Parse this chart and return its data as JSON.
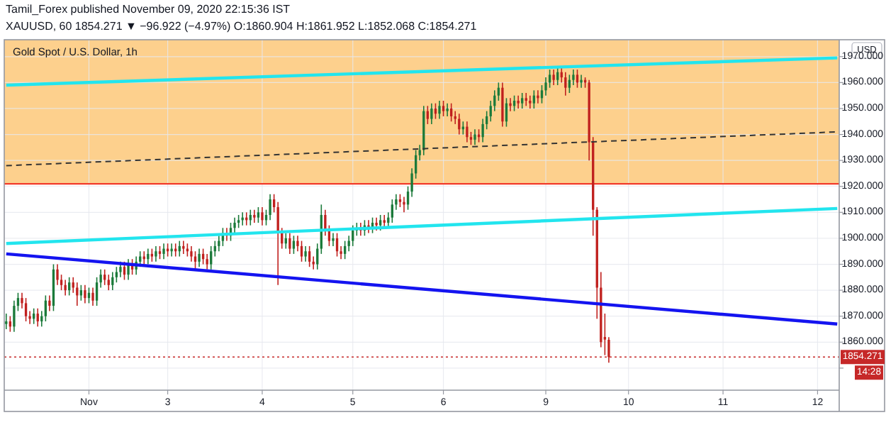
{
  "chart_data": {
    "type": "candlestick",
    "title": "Gold Spot / U.S. Dollar, 1h",
    "ylabel": "USD",
    "annotations": [
      "Tamil_Forex published November 09, 2020 22:15:36 IST",
      "XAUUSD, 60  1854.271 ▼ −96.922 (−4.97%) O:1860.904 H:1861.952 L:1852.068 C:1854.271",
      "14:28"
    ],
    "categories": [
      null,
      null,
      null,
      null,
      null,
      null,
      null,
      null,
      null,
      null,
      null,
      null,
      null,
      null,
      null,
      null,
      null,
      null,
      null,
      null,
      null,
      "Nov",
      null,
      null,
      null,
      null,
      null,
      null,
      null,
      null,
      null,
      null,
      null,
      null,
      null,
      null,
      null,
      null,
      null,
      null,
      null,
      "3",
      null,
      null,
      null,
      null,
      null,
      null,
      null,
      null,
      null,
      null,
      null,
      null,
      null,
      null,
      null,
      null,
      null,
      null,
      null,
      null,
      null,
      null,
      null,
      "4",
      null,
      null,
      null,
      null,
      null,
      null,
      null,
      null,
      null,
      null,
      null,
      null,
      null,
      null,
      null,
      null,
      null,
      null,
      null,
      null,
      null,
      null,
      "5",
      null,
      null,
      null,
      null,
      null,
      null,
      null,
      null,
      null,
      null,
      null,
      null,
      null,
      null,
      null,
      null,
      null,
      null,
      null,
      null,
      null,
      null,
      "6",
      null,
      null,
      null,
      null,
      null,
      null,
      null,
      null,
      null,
      null,
      null,
      null,
      null,
      null,
      null,
      null,
      null,
      null,
      null,
      null,
      null,
      null,
      null,
      null,
      null,
      "9",
      null,
      null,
      null,
      null,
      null,
      null,
      null,
      null,
      null,
      null,
      null,
      null,
      null,
      null,
      null,
      null,
      null,
      null,
      null,
      null,
      "10",
      null,
      null,
      null,
      null,
      null,
      null,
      null,
      null,
      null,
      null,
      null,
      null,
      null,
      null,
      null,
      null,
      null,
      null,
      null,
      null,
      null,
      null,
      null,
      "11",
      null,
      null,
      null,
      null,
      null,
      null,
      null,
      null,
      null,
      null,
      null,
      null,
      null,
      null,
      null,
      null,
      null,
      null,
      null,
      null,
      null,
      null,
      null,
      "12",
      null,
      null,
      null,
      null,
      null
    ],
    "ylim": [
      1841.5,
      1976.5
    ],
    "yticks": [
      {
        "value": 1850,
        "label": null
      },
      {
        "value": 1860,
        "label": "1860.000"
      },
      {
        "value": 1870,
        "label": "1870.000"
      },
      {
        "value": 1880,
        "label": "1880.000"
      },
      {
        "value": 1890,
        "label": "1890.000"
      },
      {
        "value": 1900,
        "label": "1900.000"
      },
      {
        "value": 1910,
        "label": "1910.000"
      },
      {
        "value": 1920,
        "label": "1920.000"
      },
      {
        "value": 1930,
        "label": "1930.000"
      },
      {
        "value": 1940,
        "label": "1940.000"
      },
      {
        "value": 1950,
        "label": "1950.000"
      },
      {
        "value": 1960,
        "label": "1960.000"
      },
      {
        "value": 1970,
        "label": "1970.000"
      }
    ],
    "grid": true,
    "bands": [
      {
        "axis": "y",
        "from": 1921,
        "to": 1976.5,
        "color": "#fdd08d"
      }
    ],
    "ref_lines": [
      {
        "axis": "y",
        "value": 1921,
        "color": "#f23c2c",
        "line_style": "solid"
      },
      {
        "axis": "y",
        "value": 1854.271,
        "label": "1854.271",
        "color": "#c62828",
        "line_style": "dotted"
      }
    ],
    "series": [
      {
        "ohlc": [
          [
            1867,
            1871,
            1865,
            1868
          ],
          [
            1868,
            1870,
            1864,
            1866
          ],
          [
            1866,
            1876,
            1864,
            1874
          ],
          [
            1874,
            1879,
            1872,
            1877
          ],
          [
            1877,
            1879,
            1873,
            1875
          ],
          [
            1875,
            1877,
            1868,
            1870
          ],
          [
            1870,
            1872,
            1867,
            1869
          ],
          [
            1869,
            1873,
            1867,
            1871
          ],
          [
            1871,
            1873,
            1866,
            1868
          ],
          [
            1868,
            1872,
            1866,
            1870
          ],
          [
            1870,
            1878,
            1868,
            1876
          ],
          [
            1876,
            1878,
            1872,
            1874
          ],
          [
            1874,
            1890,
            1872,
            1888
          ],
          [
            1888,
            1890,
            1882,
            1884
          ],
          [
            1884,
            1886,
            1880,
            1882
          ],
          [
            1882,
            1884,
            1878,
            1880
          ],
          [
            1880,
            1885,
            1878,
            1883
          ],
          [
            1883,
            1885,
            1879,
            1881
          ],
          [
            1881,
            1883,
            1874,
            1878
          ],
          [
            1878,
            1882,
            1876,
            1880
          ],
          [
            1880,
            1882,
            1875,
            1877
          ],
          [
            1877,
            1881,
            1875,
            1879
          ],
          [
            1879,
            1881,
            1874,
            1876
          ],
          [
            1876,
            1885,
            1874,
            1883
          ],
          [
            1883,
            1888,
            1881,
            1886
          ],
          [
            1886,
            1888,
            1882,
            1884
          ],
          [
            1884,
            1886,
            1880,
            1882
          ],
          [
            1882,
            1887,
            1880,
            1885
          ],
          [
            1885,
            1889,
            1883,
            1887
          ],
          [
            1887,
            1891,
            1885,
            1889
          ],
          [
            1889,
            1891,
            1884,
            1886
          ],
          [
            1886,
            1892,
            1884,
            1890
          ],
          [
            1890,
            1892,
            1886,
            1888
          ],
          [
            1888,
            1893,
            1886,
            1891
          ],
          [
            1891,
            1895,
            1889,
            1893
          ],
          [
            1893,
            1895,
            1890,
            1892
          ],
          [
            1892,
            1896,
            1890,
            1894
          ],
          [
            1894,
            1896,
            1891,
            1893
          ],
          [
            1893,
            1897,
            1891,
            1895
          ],
          [
            1895,
            1897,
            1892,
            1894
          ],
          [
            1894,
            1898,
            1892,
            1896
          ],
          [
            1896,
            1898,
            1893,
            1895
          ],
          [
            1895,
            1898,
            1893,
            1896
          ],
          [
            1896,
            1898,
            1893,
            1895
          ],
          [
            1895,
            1899,
            1893,
            1897
          ],
          [
            1897,
            1899,
            1894,
            1896
          ],
          [
            1896,
            1898,
            1893,
            1895
          ],
          [
            1895,
            1897,
            1891,
            1893
          ],
          [
            1893,
            1895,
            1888,
            1891
          ],
          [
            1891,
            1896,
            1889,
            1894
          ],
          [
            1894,
            1896,
            1890,
            1892
          ],
          [
            1892,
            1894,
            1888,
            1890
          ],
          [
            1890,
            1897,
            1888,
            1895
          ],
          [
            1895,
            1899,
            1893,
            1897
          ],
          [
            1897,
            1901,
            1895,
            1899
          ],
          [
            1899,
            1904,
            1897,
            1902
          ],
          [
            1902,
            1904,
            1899,
            1901
          ],
          [
            1901,
            1906,
            1899,
            1904
          ],
          [
            1904,
            1908,
            1902,
            1906
          ],
          [
            1906,
            1909,
            1904,
            1907
          ],
          [
            1907,
            1910,
            1905,
            1908
          ],
          [
            1908,
            1910,
            1905,
            1907
          ],
          [
            1907,
            1911,
            1905,
            1909
          ],
          [
            1909,
            1911,
            1906,
            1908
          ],
          [
            1908,
            1912,
            1906,
            1910
          ],
          [
            1910,
            1912,
            1905,
            1907
          ],
          [
            1907,
            1911,
            1905,
            1909
          ],
          [
            1909,
            1917,
            1907,
            1915
          ],
          [
            1915,
            1917,
            1910,
            1912
          ],
          [
            1912,
            1914,
            1882,
            1902
          ],
          [
            1902,
            1904,
            1896,
            1898
          ],
          [
            1898,
            1902,
            1896,
            1900
          ],
          [
            1900,
            1902,
            1894,
            1896
          ],
          [
            1896,
            1901,
            1894,
            1899
          ],
          [
            1899,
            1901,
            1895,
            1897
          ],
          [
            1897,
            1899,
            1891,
            1893
          ],
          [
            1893,
            1897,
            1891,
            1895
          ],
          [
            1895,
            1897,
            1889,
            1891
          ],
          [
            1891,
            1893,
            1888,
            1890
          ],
          [
            1890,
            1898,
            1888,
            1896
          ],
          [
            1896,
            1913,
            1894,
            1909
          ],
          [
            1909,
            1911,
            1901,
            1903
          ],
          [
            1903,
            1905,
            1897,
            1899
          ],
          [
            1899,
            1902,
            1897,
            1900
          ],
          [
            1900,
            1902,
            1893,
            1895
          ],
          [
            1895,
            1897,
            1892,
            1894
          ],
          [
            1894,
            1899,
            1892,
            1897
          ],
          [
            1897,
            1901,
            1895,
            1899
          ],
          [
            1899,
            1905,
            1897,
            1903
          ],
          [
            1903,
            1906,
            1901,
            1904
          ],
          [
            1904,
            1906,
            1901,
            1903
          ],
          [
            1903,
            1907,
            1901,
            1905
          ],
          [
            1905,
            1907,
            1902,
            1904
          ],
          [
            1904,
            1908,
            1902,
            1906
          ],
          [
            1906,
            1908,
            1903,
            1905
          ],
          [
            1905,
            1909,
            1903,
            1907
          ],
          [
            1907,
            1909,
            1904,
            1906
          ],
          [
            1906,
            1910,
            1904,
            1908
          ],
          [
            1908,
            1915,
            1906,
            1913
          ],
          [
            1913,
            1917,
            1911,
            1915
          ],
          [
            1915,
            1917,
            1912,
            1914
          ],
          [
            1914,
            1916,
            1910,
            1913
          ],
          [
            1913,
            1920,
            1911,
            1918
          ],
          [
            1918,
            1927,
            1916,
            1925
          ],
          [
            1925,
            1934,
            1923,
            1932
          ],
          [
            1932,
            1936,
            1930,
            1934
          ],
          [
            1934,
            1951,
            1932,
            1949
          ],
          [
            1949,
            1951,
            1944,
            1946
          ],
          [
            1946,
            1952,
            1944,
            1950
          ],
          [
            1950,
            1952,
            1946,
            1948
          ],
          [
            1948,
            1953,
            1946,
            1951
          ],
          [
            1951,
            1953,
            1947,
            1949
          ],
          [
            1949,
            1952,
            1947,
            1950
          ],
          [
            1950,
            1952,
            1945,
            1947
          ],
          [
            1947,
            1949,
            1944,
            1946
          ],
          [
            1946,
            1948,
            1940,
            1942
          ],
          [
            1942,
            1945,
            1940,
            1943
          ],
          [
            1943,
            1945,
            1937,
            1939
          ],
          [
            1939,
            1941,
            1936,
            1938
          ],
          [
            1938,
            1942,
            1936,
            1940
          ],
          [
            1940,
            1942,
            1937,
            1939
          ],
          [
            1939,
            1946,
            1937,
            1944
          ],
          [
            1944,
            1949,
            1942,
            1947
          ],
          [
            1947,
            1953,
            1945,
            1951
          ],
          [
            1951,
            1957,
            1949,
            1955
          ],
          [
            1955,
            1960,
            1953,
            1958
          ],
          [
            1958,
            1960,
            1943,
            1945
          ],
          [
            1945,
            1954,
            1943,
            1952
          ],
          [
            1952,
            1954,
            1949,
            1951
          ],
          [
            1951,
            1955,
            1949,
            1953
          ],
          [
            1953,
            1955,
            1950,
            1952
          ],
          [
            1952,
            1956,
            1950,
            1954
          ],
          [
            1954,
            1956,
            1951,
            1953
          ],
          [
            1953,
            1955,
            1950,
            1952
          ],
          [
            1952,
            1957,
            1950,
            1955
          ],
          [
            1955,
            1957,
            1952,
            1954
          ],
          [
            1954,
            1959,
            1952,
            1957
          ],
          [
            1957,
            1962,
            1955,
            1960
          ],
          [
            1960,
            1965,
            1958,
            1963
          ],
          [
            1963,
            1965,
            1959,
            1961
          ],
          [
            1961,
            1966,
            1959,
            1964
          ],
          [
            1964,
            1966,
            1960,
            1962
          ],
          [
            1962,
            1964,
            1955,
            1958
          ],
          [
            1958,
            1963,
            1956,
            1961
          ],
          [
            1961,
            1965,
            1959,
            1963
          ],
          [
            1963,
            1965,
            1958,
            1960
          ],
          [
            1960,
            1963,
            1958,
            1961
          ],
          [
            1961,
            1962,
            1958,
            1960
          ],
          [
            1960,
            1961,
            1930,
            1937
          ],
          [
            1937,
            1939,
            1901,
            1911
          ],
          [
            1911,
            1912,
            1869,
            1881
          ],
          [
            1881,
            1887,
            1858,
            1860
          ],
          [
            1862,
            1871,
            1855,
            1861
          ],
          [
            1860.904,
            1861.952,
            1852.068,
            1854.271
          ],
          null,
          null,
          null,
          null,
          null,
          null,
          null,
          null,
          null,
          null,
          null,
          null,
          null,
          null,
          null,
          null,
          null,
          null,
          null,
          null,
          null,
          null,
          null,
          null,
          null,
          null,
          null,
          null,
          null,
          null,
          null,
          null,
          null,
          null,
          null,
          null,
          null,
          null,
          null,
          null,
          null,
          null,
          null,
          null,
          null,
          null,
          null,
          null,
          null,
          null,
          null,
          null,
          null,
          null,
          null,
          null,
          null,
          null
        ]
      },
      {
        "type": "line",
        "color": "#22e5ee",
        "values": [
          1959,
          null,
          null,
          null,
          null,
          null,
          null,
          null,
          null,
          null,
          null,
          null,
          null,
          null,
          null,
          null,
          null,
          null,
          null,
          null,
          null,
          null,
          null,
          null,
          null,
          null,
          null,
          null,
          null,
          null,
          null,
          null,
          null,
          null,
          null,
          null,
          null,
          null,
          null,
          null,
          null,
          null,
          null,
          null,
          null,
          null,
          null,
          null,
          null,
          null,
          null,
          null,
          null,
          null,
          null,
          null,
          null,
          null,
          null,
          null,
          null,
          null,
          null,
          null,
          null,
          null,
          null,
          null,
          null,
          null,
          null,
          null,
          null,
          null,
          null,
          null,
          null,
          null,
          null,
          null,
          null,
          null,
          null,
          null,
          null,
          null,
          null,
          null,
          null,
          null,
          null,
          null,
          null,
          null,
          null,
          null,
          null,
          null,
          null,
          null,
          null,
          null,
          null,
          null,
          null,
          null,
          null,
          null,
          null,
          null,
          null,
          null,
          null,
          null,
          null,
          null,
          null,
          null,
          null,
          null,
          null,
          null,
          null,
          null,
          null,
          null,
          null,
          null,
          null,
          null,
          null,
          null,
          null,
          null,
          null,
          null,
          null,
          null,
          null,
          null,
          null,
          null,
          null,
          null,
          null,
          null,
          null,
          null,
          null,
          null,
          null,
          null,
          null,
          null,
          null,
          null,
          null,
          null,
          null,
          null,
          null,
          null,
          null,
          null,
          null,
          null,
          null,
          null,
          null,
          null,
          null,
          null,
          null,
          null,
          null,
          null,
          null,
          null,
          null,
          null,
          null,
          null,
          null,
          null,
          null,
          null,
          null,
          null,
          null,
          null,
          null,
          null,
          null,
          null,
          null,
          null,
          null,
          null,
          null,
          null,
          null,
          null,
          null,
          null,
          null,
          null,
          null,
          null,
          null,
          null,
          null,
          1969.5
        ]
      },
      {
        "type": "line",
        "color": "#22e5ee",
        "values": [
          1898,
          null,
          null,
          null,
          null,
          null,
          null,
          null,
          null,
          null,
          null,
          null,
          null,
          null,
          null,
          null,
          null,
          null,
          null,
          null,
          null,
          null,
          null,
          null,
          null,
          null,
          null,
          null,
          null,
          null,
          null,
          null,
          null,
          null,
          null,
          null,
          null,
          null,
          null,
          null,
          null,
          null,
          null,
          null,
          null,
          null,
          null,
          null,
          null,
          null,
          null,
          null,
          null,
          null,
          null,
          null,
          null,
          null,
          null,
          null,
          null,
          null,
          null,
          null,
          null,
          null,
          null,
          null,
          null,
          null,
          null,
          null,
          null,
          null,
          null,
          null,
          null,
          null,
          null,
          null,
          null,
          null,
          null,
          null,
          null,
          null,
          null,
          null,
          null,
          null,
          null,
          null,
          null,
          null,
          null,
          null,
          null,
          null,
          null,
          null,
          null,
          null,
          null,
          null,
          null,
          null,
          null,
          null,
          null,
          null,
          null,
          null,
          null,
          null,
          null,
          null,
          null,
          null,
          null,
          null,
          null,
          null,
          null,
          null,
          null,
          null,
          null,
          null,
          null,
          null,
          null,
          null,
          null,
          null,
          null,
          null,
          null,
          null,
          null,
          null,
          null,
          null,
          null,
          null,
          null,
          null,
          null,
          null,
          null,
          null,
          null,
          null,
          null,
          null,
          null,
          null,
          null,
          null,
          null,
          null,
          null,
          null,
          null,
          null,
          null,
          null,
          null,
          null,
          null,
          null,
          null,
          null,
          null,
          null,
          null,
          null,
          null,
          null,
          null,
          null,
          null,
          null,
          null,
          null,
          null,
          null,
          null,
          null,
          null,
          null,
          null,
          null,
          null,
          null,
          null,
          null,
          null,
          null,
          null,
          null,
          null,
          null,
          null,
          null,
          null,
          null,
          null,
          null,
          null,
          null,
          null,
          1911.5
        ]
      },
      {
        "type": "line",
        "color": "#1414f0",
        "values": [
          1894,
          null,
          null,
          null,
          null,
          null,
          null,
          null,
          null,
          null,
          null,
          null,
          null,
          null,
          null,
          null,
          null,
          null,
          null,
          null,
          null,
          null,
          null,
          null,
          null,
          null,
          null,
          null,
          null,
          null,
          null,
          null,
          null,
          null,
          null,
          null,
          null,
          null,
          null,
          null,
          null,
          null,
          null,
          null,
          null,
          null,
          null,
          null,
          null,
          null,
          null,
          null,
          null,
          null,
          null,
          null,
          null,
          null,
          null,
          null,
          null,
          null,
          null,
          null,
          null,
          null,
          null,
          null,
          null,
          null,
          null,
          null,
          null,
          null,
          null,
          null,
          null,
          null,
          null,
          null,
          null,
          null,
          null,
          null,
          null,
          null,
          null,
          null,
          null,
          null,
          null,
          null,
          null,
          null,
          null,
          null,
          null,
          null,
          null,
          null,
          null,
          null,
          null,
          null,
          null,
          null,
          null,
          null,
          null,
          null,
          null,
          null,
          null,
          null,
          null,
          null,
          null,
          null,
          null,
          null,
          null,
          null,
          null,
          null,
          null,
          null,
          null,
          null,
          null,
          null,
          null,
          null,
          null,
          null,
          null,
          null,
          null,
          null,
          null,
          null,
          null,
          null,
          null,
          null,
          null,
          null,
          null,
          null,
          null,
          null,
          null,
          null,
          null,
          null,
          null,
          null,
          null,
          null,
          null,
          null,
          null,
          null,
          null,
          null,
          null,
          null,
          null,
          null,
          null,
          null,
          null,
          null,
          null,
          null,
          null,
          null,
          null,
          null,
          null,
          null,
          null,
          null,
          null,
          null,
          null,
          null,
          null,
          null,
          null,
          null,
          null,
          null,
          null,
          null,
          null,
          null,
          null,
          null,
          null,
          null,
          null,
          null,
          null,
          null,
          null,
          null,
          null,
          null,
          null,
          null,
          null,
          1867
        ]
      },
      {
        "type": "line",
        "color": "#333333",
        "line_style": "dashed",
        "values": [
          1928,
          null,
          null,
          null,
          null,
          null,
          null,
          null,
          null,
          null,
          null,
          null,
          null,
          null,
          null,
          null,
          null,
          null,
          null,
          null,
          null,
          null,
          null,
          null,
          null,
          null,
          null,
          null,
          null,
          null,
          null,
          null,
          null,
          null,
          null,
          null,
          null,
          null,
          null,
          null,
          null,
          null,
          null,
          null,
          null,
          null,
          null,
          null,
          null,
          null,
          null,
          null,
          null,
          null,
          null,
          null,
          null,
          null,
          null,
          null,
          null,
          null,
          null,
          null,
          null,
          null,
          null,
          null,
          null,
          null,
          null,
          null,
          null,
          null,
          null,
          null,
          null,
          null,
          null,
          null,
          null,
          null,
          null,
          null,
          null,
          null,
          null,
          null,
          null,
          null,
          null,
          null,
          null,
          null,
          null,
          null,
          null,
          null,
          null,
          null,
          null,
          null,
          null,
          null,
          null,
          null,
          null,
          null,
          null,
          null,
          null,
          null,
          null,
          null,
          null,
          null,
          null,
          null,
          null,
          null,
          null,
          null,
          null,
          null,
          null,
          null,
          null,
          null,
          null,
          null,
          null,
          null,
          null,
          null,
          null,
          null,
          null,
          null,
          null,
          null,
          null,
          null,
          null,
          null,
          null,
          null,
          null,
          null,
          null,
          null,
          null,
          null,
          null,
          null,
          null,
          null,
          null,
          null,
          null,
          null,
          null,
          null,
          null,
          null,
          null,
          null,
          null,
          null,
          null,
          null,
          null,
          null,
          null,
          null,
          null,
          null,
          null,
          null,
          null,
          null,
          null,
          null,
          null,
          null,
          null,
          null,
          null,
          null,
          null,
          null,
          null,
          null,
          null,
          null,
          null,
          null,
          null,
          null,
          null,
          null,
          null,
          null,
          null,
          null,
          null,
          null,
          null,
          null,
          null,
          null,
          null,
          1941
        ]
      }
    ]
  }
}
